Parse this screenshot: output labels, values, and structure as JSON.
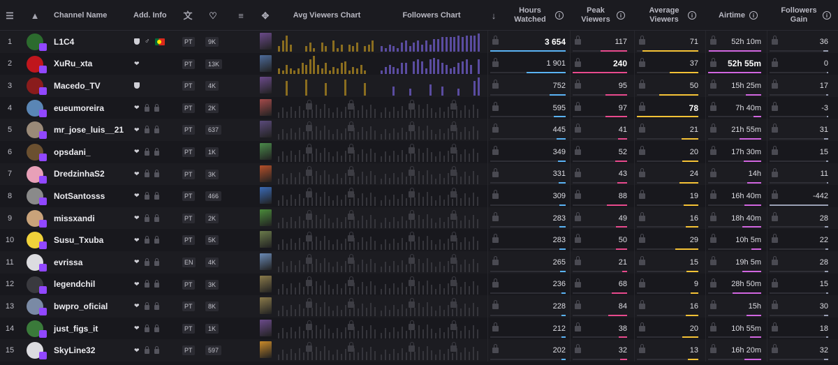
{
  "columns": {
    "channel_name": "Channel Name",
    "add_info": "Add. Info",
    "avg_viewers_chart": "Avg Viewers Chart",
    "followers_chart": "Followers Chart",
    "hours_watched": "Hours Watched",
    "peak_viewers": "Peak Viewers",
    "average_viewers": "Average Viewers",
    "airtime": "Airtime",
    "followers_gain": "Followers Gain",
    "info_glyph": "i"
  },
  "icons": {
    "list": "☰",
    "sort": "↓",
    "translate": "文",
    "heart": "♡",
    "filter": "≡",
    "gamepad": "✥",
    "logo": "▲"
  },
  "colors": {
    "hours": "#5ab3f5",
    "peak": "#e84a8d",
    "avg": "#f5c236",
    "airtime": "#d166e0",
    "gain": "#9aa0b4",
    "avg_chart_bar": "#8a6d1f",
    "fol_chart_bar": "#5a4ca0",
    "locked_bar": "#35353b"
  },
  "rows": [
    {
      "rank": "1",
      "name": "L1C4",
      "lang": "PT",
      "followers": "9K",
      "hours": "3 654",
      "hours_frac": 1.0,
      "peak": "117",
      "peak_frac": 0.49,
      "avg": "71",
      "avg_frac": 0.91,
      "airtime": "52h 10m",
      "air_frac": 0.99,
      "gain": "36",
      "gain_frac": 0.08,
      "bold": "hours",
      "locked": false,
      "gender": "♂",
      "flag": true,
      "avatar": "#2c6b2e",
      "game": "#6b4a8a"
    },
    {
      "rank": "2",
      "name": "XuRu_xta",
      "lang": "PT",
      "followers": "13K",
      "hours": "1 901",
      "hours_frac": 0.52,
      "peak": "240",
      "peak_frac": 1.0,
      "avg": "37",
      "avg_frac": 0.47,
      "airtime": "52h 55m",
      "air_frac": 1.0,
      "gain": "0",
      "gain_frac": 0.0,
      "bold": "peak_air",
      "locked": false,
      "gender": "",
      "flag": false,
      "avatar": "#c0161d",
      "game": "#4d6b9a"
    },
    {
      "rank": "3",
      "name": "Macedo_TV",
      "lang": "PT",
      "followers": "4K",
      "hours": "752",
      "hours_frac": 0.21,
      "peak": "95",
      "peak_frac": 0.4,
      "avg": "50",
      "avg_frac": 0.64,
      "airtime": "15h 25m",
      "air_frac": 0.29,
      "gain": "17",
      "gain_frac": 0.04,
      "bold": "",
      "locked": false,
      "gender": "",
      "flag": false,
      "avatar": "#8a1c1c",
      "game": "#6b4a8a"
    },
    {
      "rank": "4",
      "name": "eueumoreira",
      "lang": "PT",
      "followers": "2K",
      "hours": "595",
      "hours_frac": 0.16,
      "peak": "97",
      "peak_frac": 0.4,
      "avg": "78",
      "avg_frac": 1.0,
      "airtime": "7h 40m",
      "air_frac": 0.14,
      "gain": "-3",
      "gain_frac": 0.01,
      "bold": "avg",
      "locked": true,
      "gender": "",
      "flag": false,
      "avatar": "#5a86b5",
      "game": "#a34a4a"
    },
    {
      "rank": "5",
      "name": "mr_jose_luis__21",
      "lang": "PT",
      "followers": "637",
      "hours": "445",
      "hours_frac": 0.12,
      "peak": "41",
      "peak_frac": 0.17,
      "avg": "21",
      "avg_frac": 0.27,
      "airtime": "21h 55m",
      "air_frac": 0.41,
      "gain": "31",
      "gain_frac": 0.07,
      "bold": "",
      "locked": true,
      "gender": "",
      "flag": false,
      "avatar": "#9a8a78",
      "game": "#5a4a7a"
    },
    {
      "rank": "6",
      "name": "opsdani_",
      "lang": "PT",
      "followers": "1K",
      "hours": "349",
      "hours_frac": 0.1,
      "peak": "52",
      "peak_frac": 0.22,
      "avg": "20",
      "avg_frac": 0.26,
      "airtime": "17h 30m",
      "air_frac": 0.33,
      "gain": "15",
      "gain_frac": 0.03,
      "bold": "",
      "locked": true,
      "gender": "",
      "flag": false,
      "avatar": "#6b5030",
      "game": "#4a8a4a"
    },
    {
      "rank": "7",
      "name": "DredzinhaS2",
      "lang": "PT",
      "followers": "3K",
      "hours": "331",
      "hours_frac": 0.09,
      "peak": "43",
      "peak_frac": 0.18,
      "avg": "24",
      "avg_frac": 0.31,
      "airtime": "14h",
      "air_frac": 0.26,
      "gain": "11",
      "gain_frac": 0.02,
      "bold": "",
      "locked": true,
      "gender": "",
      "flag": false,
      "avatar": "#e8a0b8",
      "game": "#b5502a"
    },
    {
      "rank": "8",
      "name": "NotSantosss",
      "lang": "PT",
      "followers": "466",
      "hours": "309",
      "hours_frac": 0.08,
      "peak": "88",
      "peak_frac": 0.37,
      "avg": "19",
      "avg_frac": 0.24,
      "airtime": "16h 40m",
      "air_frac": 0.31,
      "gain": "-442",
      "gain_frac": 1.0,
      "bold": "",
      "locked": true,
      "gender": "",
      "flag": false,
      "avatar": "#8a8a8a",
      "game": "#3a6ab5"
    },
    {
      "rank": "9",
      "name": "missxandi",
      "lang": "PT",
      "followers": "2K",
      "hours": "283",
      "hours_frac": 0.08,
      "peak": "49",
      "peak_frac": 0.2,
      "avg": "16",
      "avg_frac": 0.21,
      "airtime": "18h 40m",
      "air_frac": 0.35,
      "gain": "28",
      "gain_frac": 0.06,
      "bold": "",
      "locked": true,
      "gender": "",
      "flag": false,
      "avatar": "#c9a37a",
      "game": "#4a8a3a"
    },
    {
      "rank": "10",
      "name": "Susu_Txuba",
      "lang": "PT",
      "followers": "5K",
      "hours": "283",
      "hours_frac": 0.08,
      "peak": "50",
      "peak_frac": 0.21,
      "avg": "29",
      "avg_frac": 0.37,
      "airtime": "10h 5m",
      "air_frac": 0.19,
      "gain": "22",
      "gain_frac": 0.05,
      "bold": "",
      "locked": true,
      "gender": "",
      "flag": false,
      "avatar": "#f0d23a",
      "game": "#6a7a4a"
    },
    {
      "rank": "11",
      "name": "evrissa",
      "lang": "EN",
      "followers": "4K",
      "hours": "265",
      "hours_frac": 0.07,
      "peak": "21",
      "peak_frac": 0.09,
      "avg": "15",
      "avg_frac": 0.19,
      "airtime": "19h 5m",
      "air_frac": 0.36,
      "gain": "28",
      "gain_frac": 0.06,
      "bold": "",
      "locked": true,
      "gender": "",
      "flag": false,
      "avatar": "#dcdce0",
      "game": "#6a8ab5"
    },
    {
      "rank": "12",
      "name": "legendchil",
      "lang": "PT",
      "followers": "3K",
      "hours": "236",
      "hours_frac": 0.06,
      "peak": "68",
      "peak_frac": 0.28,
      "avg": "9",
      "avg_frac": 0.12,
      "airtime": "28h 50m",
      "air_frac": 0.54,
      "gain": "15",
      "gain_frac": 0.03,
      "bold": "",
      "locked": true,
      "gender": "",
      "flag": false,
      "avatar": "#3a3a3f",
      "game": "#8a7a4a"
    },
    {
      "rank": "13",
      "name": "bwpro_oficial",
      "lang": "PT",
      "followers": "8K",
      "hours": "228",
      "hours_frac": 0.06,
      "peak": "84",
      "peak_frac": 0.35,
      "avg": "16",
      "avg_frac": 0.21,
      "airtime": "15h",
      "air_frac": 0.28,
      "gain": "30",
      "gain_frac": 0.07,
      "bold": "",
      "locked": true,
      "gender": "",
      "flag": false,
      "avatar": "#7a8aa5",
      "game": "#8a7a4a"
    },
    {
      "rank": "14",
      "name": "just_figs_it",
      "lang": "PT",
      "followers": "1K",
      "hours": "212",
      "hours_frac": 0.06,
      "peak": "38",
      "peak_frac": 0.16,
      "avg": "20",
      "avg_frac": 0.26,
      "airtime": "10h 55m",
      "air_frac": 0.21,
      "gain": "18",
      "gain_frac": 0.04,
      "bold": "",
      "locked": true,
      "gender": "",
      "flag": false,
      "avatar": "#3a7a3a",
      "game": "#6b4a8a"
    },
    {
      "rank": "15",
      "name": "SkyLine32",
      "lang": "PT",
      "followers": "597",
      "hours": "202",
      "hours_frac": 0.06,
      "peak": "32",
      "peak_frac": 0.13,
      "avg": "13",
      "avg_frac": 0.17,
      "airtime": "16h 20m",
      "air_frac": 0.31,
      "gain": "32",
      "gain_frac": 0.07,
      "bold": "",
      "locked": true,
      "gender": "",
      "flag": false,
      "avatar": "#dcdce0",
      "game": "#c98a2a"
    }
  ],
  "mini_charts": {
    "row1_avg": [
      0.3,
      0.6,
      0.9,
      0.4,
      0,
      0,
      0,
      0.3,
      0.5,
      0.2,
      0,
      0.5,
      0.3,
      0,
      0.6,
      0.2,
      0.4,
      0,
      0.4,
      0.3,
      0.5,
      0,
      0.3,
      0.4,
      0.6
    ],
    "row1_fol": [
      0.3,
      0.2,
      0.4,
      0.3,
      0.2,
      0.5,
      0.6,
      0.3,
      0.5,
      0.6,
      0.4,
      0.6,
      0.4,
      0.7,
      0.7,
      0.8,
      0.8,
      0.8,
      0.8,
      0.9,
      0.8,
      0.9,
      0.9,
      0.9,
      1.0
    ],
    "row2_avg": [
      0.3,
      0.2,
      0.5,
      0.3,
      0.2,
      0.3,
      0.6,
      0.5,
      0.8,
      1.0,
      0.5,
      0.3,
      0.6,
      0.2,
      0.4,
      0.3,
      0.6,
      0.7,
      0.2,
      0.4,
      0.3,
      0.5,
      0.2,
      0,
      0
    ],
    "row2_fol": [
      0.2,
      0.4,
      0.5,
      0.4,
      0.3,
      0.6,
      0.6,
      0,
      0.7,
      0.8,
      0.7,
      0.3,
      0.8,
      0.9,
      0.8,
      0.6,
      0.5,
      0.3,
      0.4,
      0.6,
      0.7,
      0.8,
      0.5,
      0,
      0.8
    ],
    "row3_avg": [
      0,
      0,
      0.8,
      0,
      0,
      0,
      0,
      0.9,
      0,
      0,
      0,
      0,
      0.7,
      0,
      0,
      0,
      0,
      0.9,
      0,
      0,
      0,
      0,
      0.7,
      0,
      0
    ],
    "row3_fol": [
      0,
      0,
      0,
      0.5,
      0,
      0,
      0,
      0.4,
      0,
      0,
      0,
      0,
      0.6,
      0,
      0,
      0.5,
      0,
      0,
      0,
      0.4,
      0,
      0,
      0,
      0.8,
      1.0
    ]
  }
}
